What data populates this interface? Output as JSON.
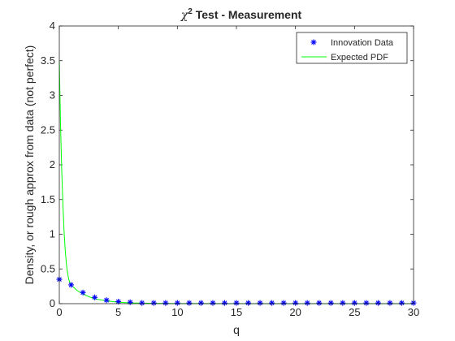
{
  "chart_data": {
    "type": "line",
    "title_prefix": "χ",
    "title_superscript": "2",
    "title_rest": " Test - Measurement",
    "xlabel": "q",
    "ylabel": "Density, or rough approx from data (not perfect)",
    "xlim": [
      0,
      30
    ],
    "ylim": [
      0,
      4
    ],
    "xticks": [
      "0",
      "5",
      "10",
      "15",
      "20",
      "25",
      "30"
    ],
    "yticks": [
      "0",
      "0.5",
      "1",
      "1.5",
      "2",
      "2.5",
      "3",
      "3.5",
      "4"
    ],
    "grid": false,
    "legend_position": "top-right",
    "series": [
      {
        "name": "Innovation Data",
        "style": "markers-asterisk",
        "color": "#0000ff",
        "x": [
          0,
          1,
          2,
          3,
          4,
          5,
          6,
          7,
          8,
          9,
          10,
          11,
          12,
          13,
          14,
          15,
          16,
          17,
          18,
          19,
          20,
          21,
          22,
          23,
          24,
          25,
          26,
          27,
          28,
          29,
          30
        ],
        "y": [
          0.35,
          0.27,
          0.16,
          0.09,
          0.05,
          0.03,
          0.02,
          0.01,
          0.01,
          0.01,
          0.01,
          0.01,
          0.01,
          0.01,
          0.01,
          0.01,
          0.01,
          0.01,
          0.01,
          0.01,
          0.01,
          0.01,
          0.01,
          0.01,
          0.01,
          0.01,
          0.01,
          0.01,
          0.01,
          0.01,
          0.01
        ]
      },
      {
        "name": "Expected PDF",
        "style": "line",
        "color": "#00ff00",
        "x": [
          0,
          0.1,
          0.2,
          0.3,
          0.4,
          0.5,
          0.6,
          0.7,
          0.8,
          0.9,
          1.0,
          1.5,
          2,
          2.5,
          3,
          4,
          5,
          6,
          8,
          10,
          15,
          20,
          25,
          30
        ],
        "y": [
          3.5,
          2.6,
          1.95,
          1.45,
          1.05,
          0.77,
          0.57,
          0.44,
          0.35,
          0.3,
          0.27,
          0.19,
          0.14,
          0.1,
          0.07,
          0.04,
          0.02,
          0.01,
          0.005,
          0.002,
          0.0,
          0.0,
          0.0,
          0.0
        ]
      }
    ]
  }
}
